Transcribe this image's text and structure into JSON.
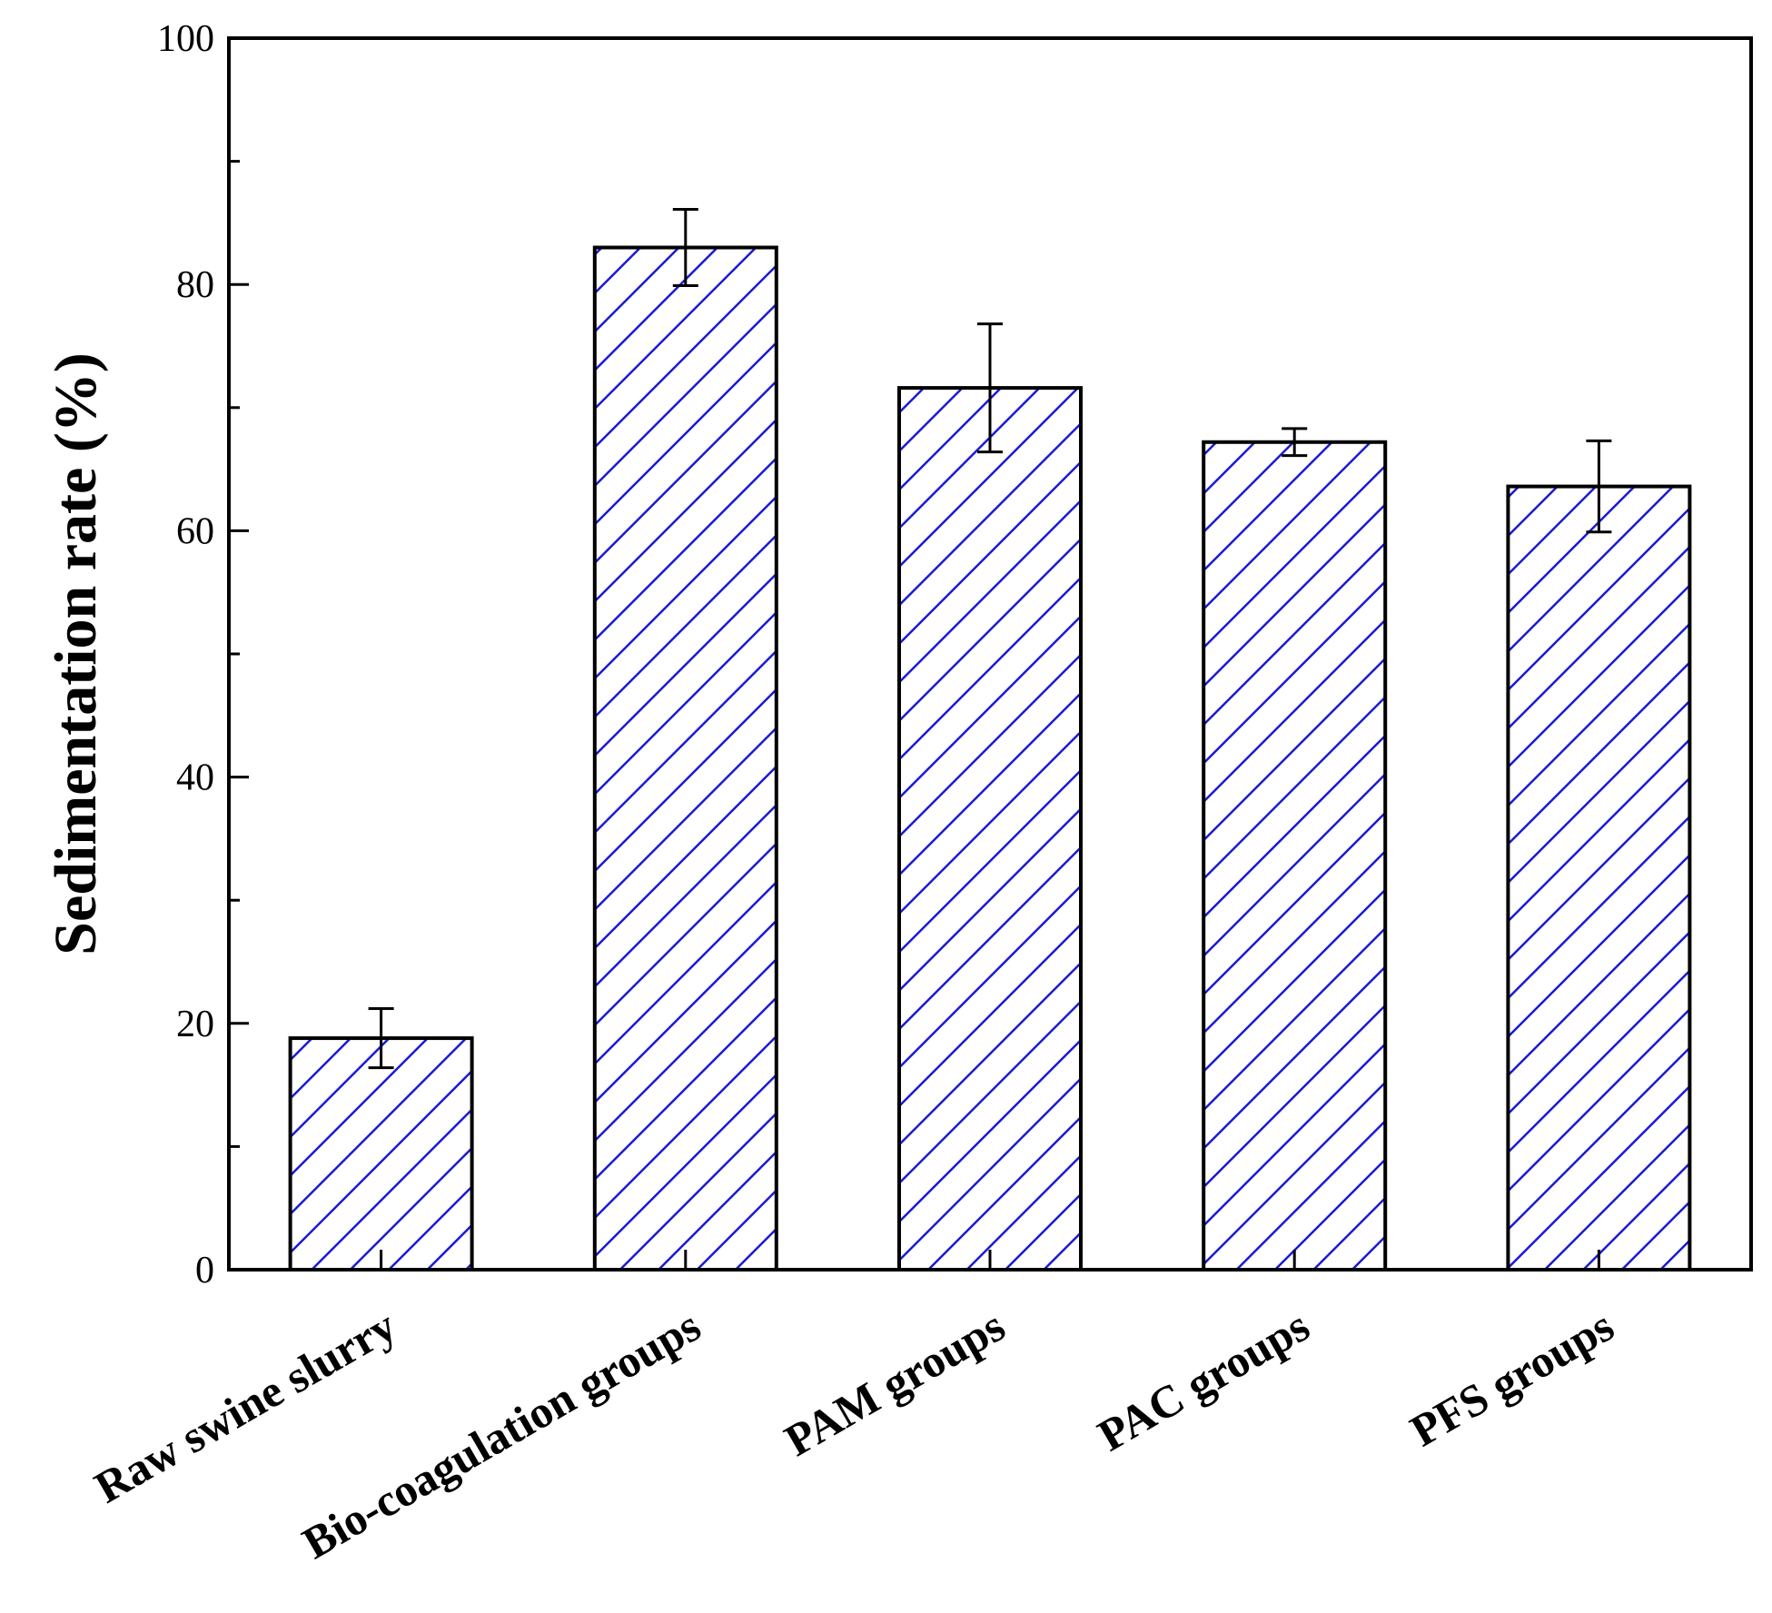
{
  "chart_data": {
    "type": "bar",
    "title": "",
    "xlabel": "",
    "ylabel": "Sedimentation rate (%)",
    "ylim": [
      0,
      100
    ],
    "yticks": [
      0,
      20,
      40,
      60,
      80,
      100
    ],
    "grid": false,
    "legend": "none",
    "categories": [
      "Raw swine slurry",
      "Bio-coagulation groups",
      "PAM groups",
      "PAC groups",
      "PFS groups"
    ],
    "values": [
      18.8,
      83.0,
      71.6,
      67.2,
      63.6
    ],
    "errors": [
      2.4,
      3.1,
      5.2,
      1.1,
      3.7
    ],
    "bar_style": "diagonal hatch",
    "hatch_color": "#1a1ad6",
    "bar_fill": "#ffffff",
    "edge_color": "#000000"
  }
}
